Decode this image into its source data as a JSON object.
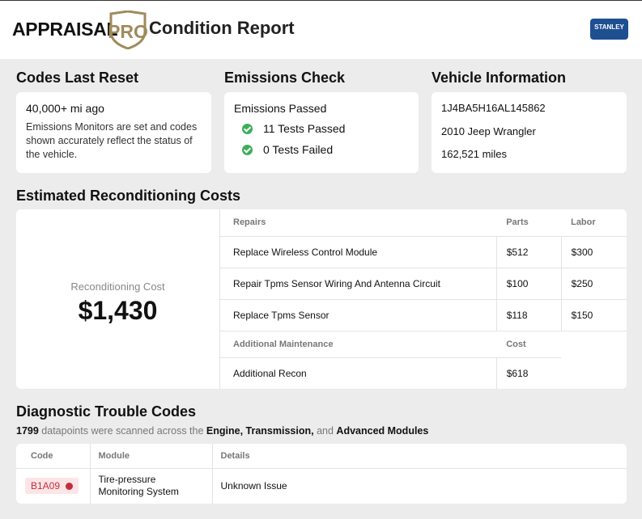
{
  "header": {
    "brand": "APPRAISAL",
    "brand_pro": "PRO",
    "title": "Condition Report",
    "dealer": "STANLEY"
  },
  "codes_reset": {
    "title": "Codes Last Reset",
    "mileage": "40,000+ mi ago",
    "note": "Emissions Monitors are set and codes shown accurately reflect the status of the vehicle."
  },
  "emissions": {
    "title": "Emissions Check",
    "status": "Emissions Passed",
    "passed": "11 Tests Passed",
    "failed": "0 Tests Failed"
  },
  "vehicle": {
    "title": "Vehicle Information",
    "vin": "1J4BA5H16AL145862",
    "model": "2010 Jeep Wrangler",
    "mileage": "162,521 miles"
  },
  "reconditioning": {
    "title": "Estimated Reconditioning Costs",
    "cost_label": "Reconditioning Cost",
    "total": "$1,430",
    "repairs": {
      "header": [
        "Repairs",
        "Parts",
        "Labor"
      ],
      "rows": [
        [
          "Replace Wireless Control Module",
          "$512",
          "$300"
        ],
        [
          "Repair Tpms Sensor Wiring And Antenna Circuit",
          "$100",
          "$250"
        ],
        [
          "Replace Tpms Sensor",
          "$118",
          "$150"
        ]
      ]
    },
    "maintenance": {
      "header": [
        "Additional Maintenance",
        "Cost"
      ],
      "rows": [
        [
          "Additional Recon",
          "$618"
        ]
      ]
    }
  },
  "dtc": {
    "title": "Diagnostic Trouble Codes",
    "summary": [
      "1799",
      "datapoints were scanned across the",
      "Engine, Transmission,",
      "and",
      "Advanced Modules"
    ],
    "table": {
      "header": [
        "Code",
        "Module",
        "Details"
      ],
      "rows": [
        [
          "B1A09",
          "Tire-pressure Monitoring System",
          "Unknown Issue"
        ]
      ]
    }
  }
}
